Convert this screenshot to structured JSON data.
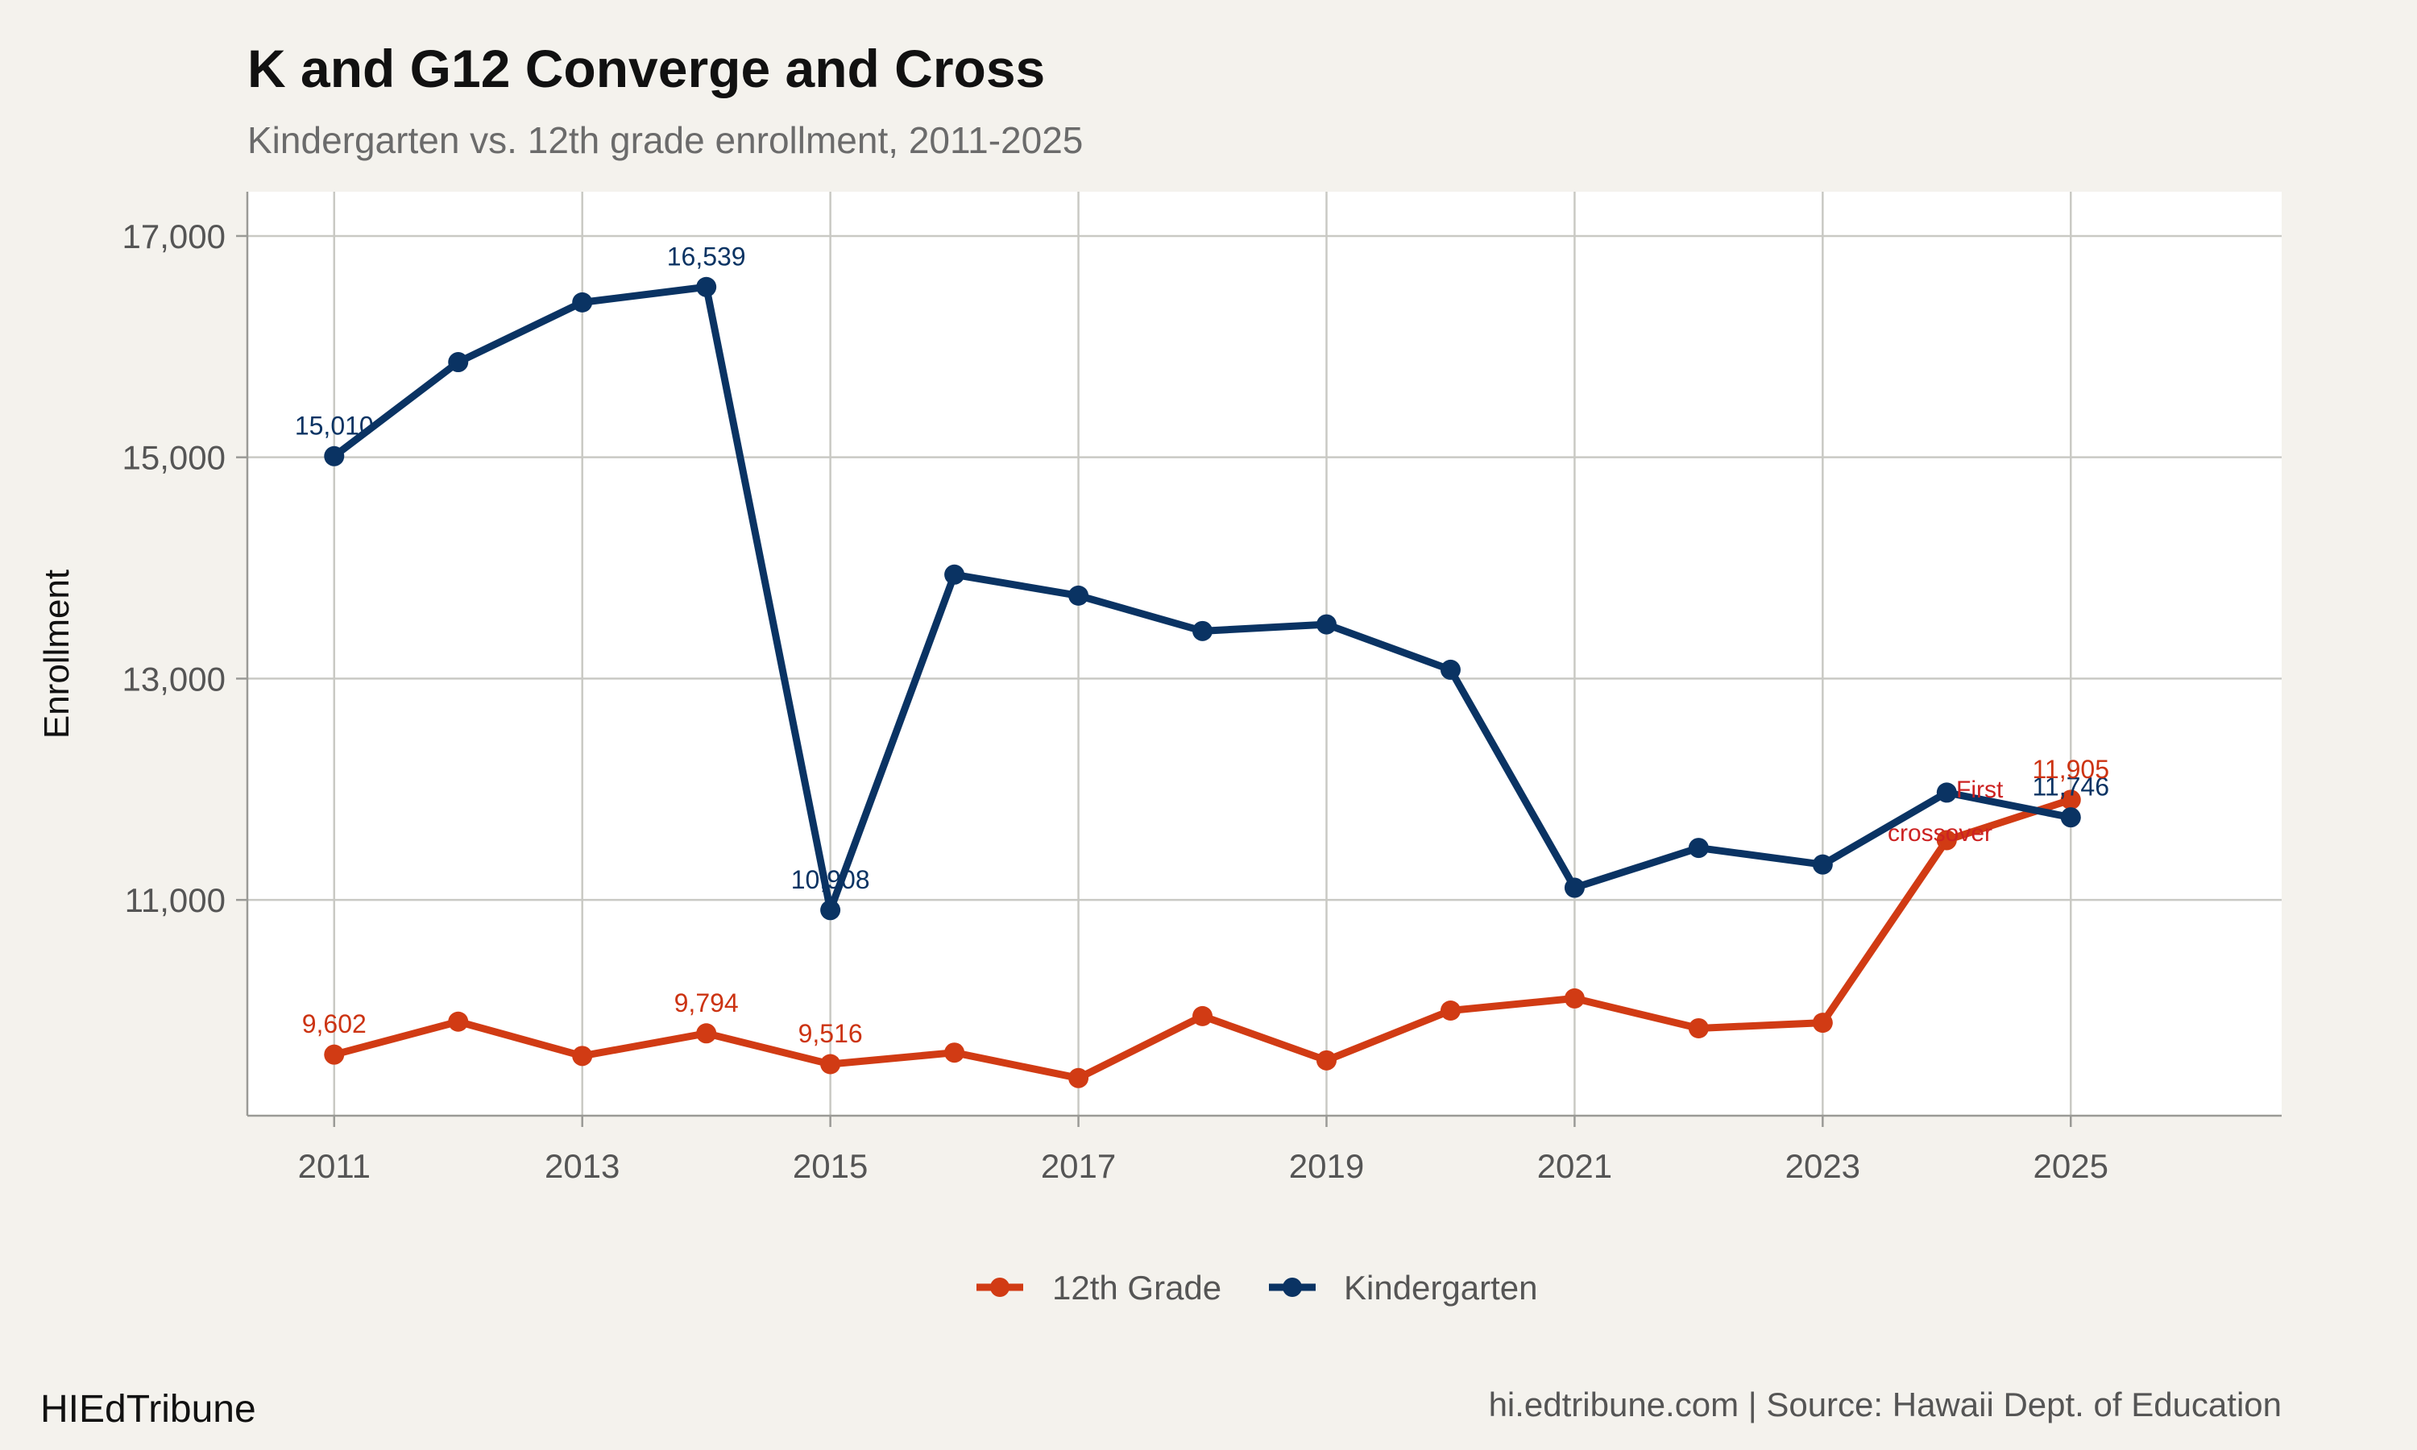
{
  "chart_data": {
    "type": "line",
    "title": "K and G12 Converge and Cross",
    "subtitle": "Kindergarten vs. 12th grade enrollment, 2011-2025",
    "xlabel": "",
    "ylabel": "Enrollment",
    "x": [
      2011,
      2012,
      2013,
      2014,
      2015,
      2016,
      2017,
      2018,
      2019,
      2020,
      2021,
      2022,
      2023,
      2024,
      2025
    ],
    "xticks": [
      "2011",
      "2013",
      "2015",
      "2017",
      "2019",
      "2021",
      "2023",
      "2025"
    ],
    "yticks": [
      "11,000",
      "13,000",
      "15,000",
      "17,000"
    ],
    "xlim": [
      2010.3,
      2026.7
    ],
    "ylim": [
      9050,
      17400
    ],
    "series": [
      {
        "name": "12th Grade",
        "color": "#d13b14",
        "values": [
          9602,
          9900,
          9590,
          9794,
          9516,
          9620,
          9390,
          9950,
          9550,
          10000,
          10110,
          9840,
          9890,
          11540,
          11905
        ]
      },
      {
        "name": "Kindergarten",
        "color": "#0a3363",
        "values": [
          15010,
          15860,
          16400,
          16539,
          10908,
          13940,
          13750,
          13430,
          13490,
          13080,
          11110,
          11470,
          11320,
          11970,
          11746
        ]
      }
    ],
    "data_labels": [
      {
        "series": "Kindergarten",
        "x": 2011,
        "text": "15,010"
      },
      {
        "series": "Kindergarten",
        "x": 2014,
        "text": "16,539"
      },
      {
        "series": "Kindergarten",
        "x": 2015,
        "text": "10,908"
      },
      {
        "series": "Kindergarten",
        "x": 2025,
        "text": "11,746"
      },
      {
        "series": "12th Grade",
        "x": 2011,
        "text": "9,602"
      },
      {
        "series": "12th Grade",
        "x": 2014,
        "text": "9,794"
      },
      {
        "series": "12th Grade",
        "x": 2015,
        "text": "9,516"
      },
      {
        "series": "12th Grade",
        "x": 2025,
        "text": "11,905"
      }
    ],
    "annotation": {
      "line1": "First",
      "line2": "crossover",
      "x": 2024
    },
    "legend": [
      "12th Grade",
      "Kindergarten"
    ],
    "legend_position": "bottom",
    "grid": true
  },
  "footer": {
    "brand": "HIEdTribune",
    "source": "hi.edtribune.com | Source: Hawaii Dept. of Education"
  }
}
